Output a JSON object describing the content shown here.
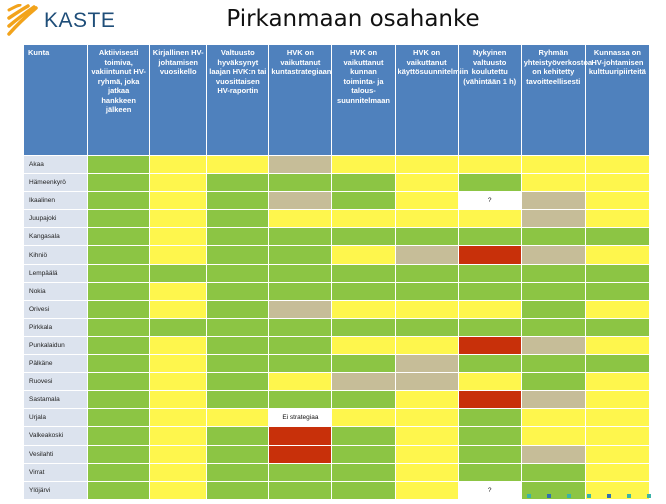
{
  "brand": {
    "name": "KASTE",
    "mark_color": "#f2a31b",
    "text_color": "#1f4e79"
  },
  "title": "Pirkanmaan osahanke",
  "colors": {
    "green": "#8cc544",
    "yellow": "#fef64d",
    "tan": "#c6bd98",
    "red": "#c8300a",
    "white": "#ffffff",
    "header": "#4f81bd",
    "name_cell": "#dce3ee"
  },
  "columns": [
    "Kunta",
    "Aktiivisesti toimiva, vakiintunut HV-ryhmä, joka jatkaa hankkeen jälkeen",
    "Kirjallinen HV-johtamisen vuosikello",
    "Valtuusto hyväksynyt laajan HVK:n tai vuosittaisen HV-raportin",
    "HVK on vaikuttanut kuntastrategiaan",
    "HVK on vaikuttanut kunnan toiminta- ja talous-suunnitelmaan",
    "HVK on vaikuttanut käyttösuunnitelmiin",
    "Nykyinen valtuusto koulutettu (vähintään 1 h)",
    "Ryhmän yhteistyöverkostoa on kehitetty tavoitteellisesti",
    "Kunnassa on HV-johtamisen kulttuuripiirteitä"
  ],
  "rows": [
    {
      "name": "Akaa",
      "cells": [
        "g",
        "y",
        "y",
        "t",
        "y",
        "y",
        "y",
        "y",
        "y"
      ],
      "notes": [
        "",
        "",
        "",
        "",
        "",
        "",
        "",
        "",
        ""
      ]
    },
    {
      "name": "Hämeenkyrö",
      "cells": [
        "g",
        "y",
        "g",
        "g",
        "g",
        "y",
        "g",
        "y",
        "y"
      ],
      "notes": [
        "",
        "",
        "",
        "",
        "",
        "",
        "",
        "",
        ""
      ]
    },
    {
      "name": "Ikaalinen",
      "cells": [
        "g",
        "y",
        "g",
        "t",
        "g",
        "y",
        "w",
        "t",
        "y"
      ],
      "notes": [
        "",
        "",
        "",
        "",
        "",
        "",
        "?",
        "",
        ""
      ]
    },
    {
      "name": "Juupajoki",
      "cells": [
        "g",
        "y",
        "g",
        "y",
        "y",
        "y",
        "y",
        "t",
        "y"
      ],
      "notes": [
        "",
        "",
        "",
        "",
        "",
        "",
        "",
        "",
        ""
      ]
    },
    {
      "name": "Kangasala",
      "cells": [
        "g",
        "y",
        "g",
        "g",
        "g",
        "g",
        "g",
        "g",
        "g"
      ],
      "notes": [
        "",
        "",
        "",
        "",
        "",
        "",
        "",
        "",
        ""
      ]
    },
    {
      "name": "Kihniö",
      "cells": [
        "g",
        "y",
        "g",
        "g",
        "y",
        "t",
        "r",
        "t",
        "y"
      ],
      "notes": [
        "",
        "",
        "",
        "",
        "",
        "",
        "",
        "",
        ""
      ]
    },
    {
      "name": "Lempäälä",
      "cells": [
        "g",
        "g",
        "g",
        "g",
        "g",
        "g",
        "g",
        "g",
        "g"
      ],
      "notes": [
        "",
        "",
        "",
        "",
        "",
        "",
        "",
        "",
        ""
      ]
    },
    {
      "name": "Nokia",
      "cells": [
        "g",
        "y",
        "g",
        "g",
        "g",
        "g",
        "g",
        "g",
        "g"
      ],
      "notes": [
        "",
        "",
        "",
        "",
        "",
        "",
        "",
        "",
        ""
      ]
    },
    {
      "name": "Orivesi",
      "cells": [
        "g",
        "y",
        "g",
        "t",
        "y",
        "y",
        "y",
        "g",
        "y"
      ],
      "notes": [
        "",
        "",
        "",
        "",
        "",
        "",
        "",
        "",
        ""
      ]
    },
    {
      "name": "Pirkkala",
      "cells": [
        "g",
        "g",
        "g",
        "g",
        "g",
        "g",
        "g",
        "g",
        "g"
      ],
      "notes": [
        "",
        "",
        "",
        "",
        "",
        "",
        "",
        "",
        ""
      ]
    },
    {
      "name": "Punkalaidun",
      "cells": [
        "g",
        "y",
        "g",
        "g",
        "y",
        "y",
        "r",
        "t",
        "y"
      ],
      "notes": [
        "",
        "",
        "",
        "",
        "",
        "",
        "",
        "",
        ""
      ]
    },
    {
      "name": "Pälkäne",
      "cells": [
        "g",
        "y",
        "g",
        "g",
        "g",
        "t",
        "g",
        "g",
        "g"
      ],
      "notes": [
        "",
        "",
        "",
        "",
        "",
        "",
        "",
        "",
        ""
      ]
    },
    {
      "name": "Ruovesi",
      "cells": [
        "g",
        "y",
        "g",
        "y",
        "t",
        "t",
        "y",
        "g",
        "y"
      ],
      "notes": [
        "",
        "",
        "",
        "",
        "",
        "",
        "",
        "",
        ""
      ]
    },
    {
      "name": "Sastamala",
      "cells": [
        "g",
        "y",
        "g",
        "g",
        "g",
        "y",
        "r",
        "t",
        "y"
      ],
      "notes": [
        "",
        "",
        "",
        "",
        "",
        "",
        "",
        "",
        ""
      ]
    },
    {
      "name": "Urjala",
      "cells": [
        "g",
        "y",
        "y",
        "w",
        "y",
        "y",
        "g",
        "y",
        "y"
      ],
      "notes": [
        "",
        "",
        "",
        "Ei strategiaa",
        "",
        "",
        "",
        "",
        ""
      ]
    },
    {
      "name": "Valkeakoski",
      "cells": [
        "g",
        "y",
        "g",
        "r",
        "g",
        "y",
        "g",
        "y",
        "y"
      ],
      "notes": [
        "",
        "",
        "",
        "",
        "",
        "",
        "",
        "",
        ""
      ]
    },
    {
      "name": "Vesilahti",
      "cells": [
        "g",
        "y",
        "g",
        "r",
        "g",
        "y",
        "g",
        "t",
        "y"
      ],
      "notes": [
        "",
        "",
        "",
        "",
        "",
        "",
        "",
        "",
        ""
      ]
    },
    {
      "name": "Virrat",
      "cells": [
        "g",
        "y",
        "g",
        "g",
        "g",
        "y",
        "g",
        "g",
        "y"
      ],
      "notes": [
        "",
        "",
        "",
        "",
        "",
        "",
        "",
        "",
        ""
      ]
    },
    {
      "name": "Ylöjärvi",
      "cells": [
        "g",
        "y",
        "g",
        "g",
        "g",
        "y",
        "w",
        "g",
        "y"
      ],
      "notes": [
        "",
        "",
        "",
        "",
        "",
        "",
        "?",
        "",
        ""
      ]
    }
  ]
}
